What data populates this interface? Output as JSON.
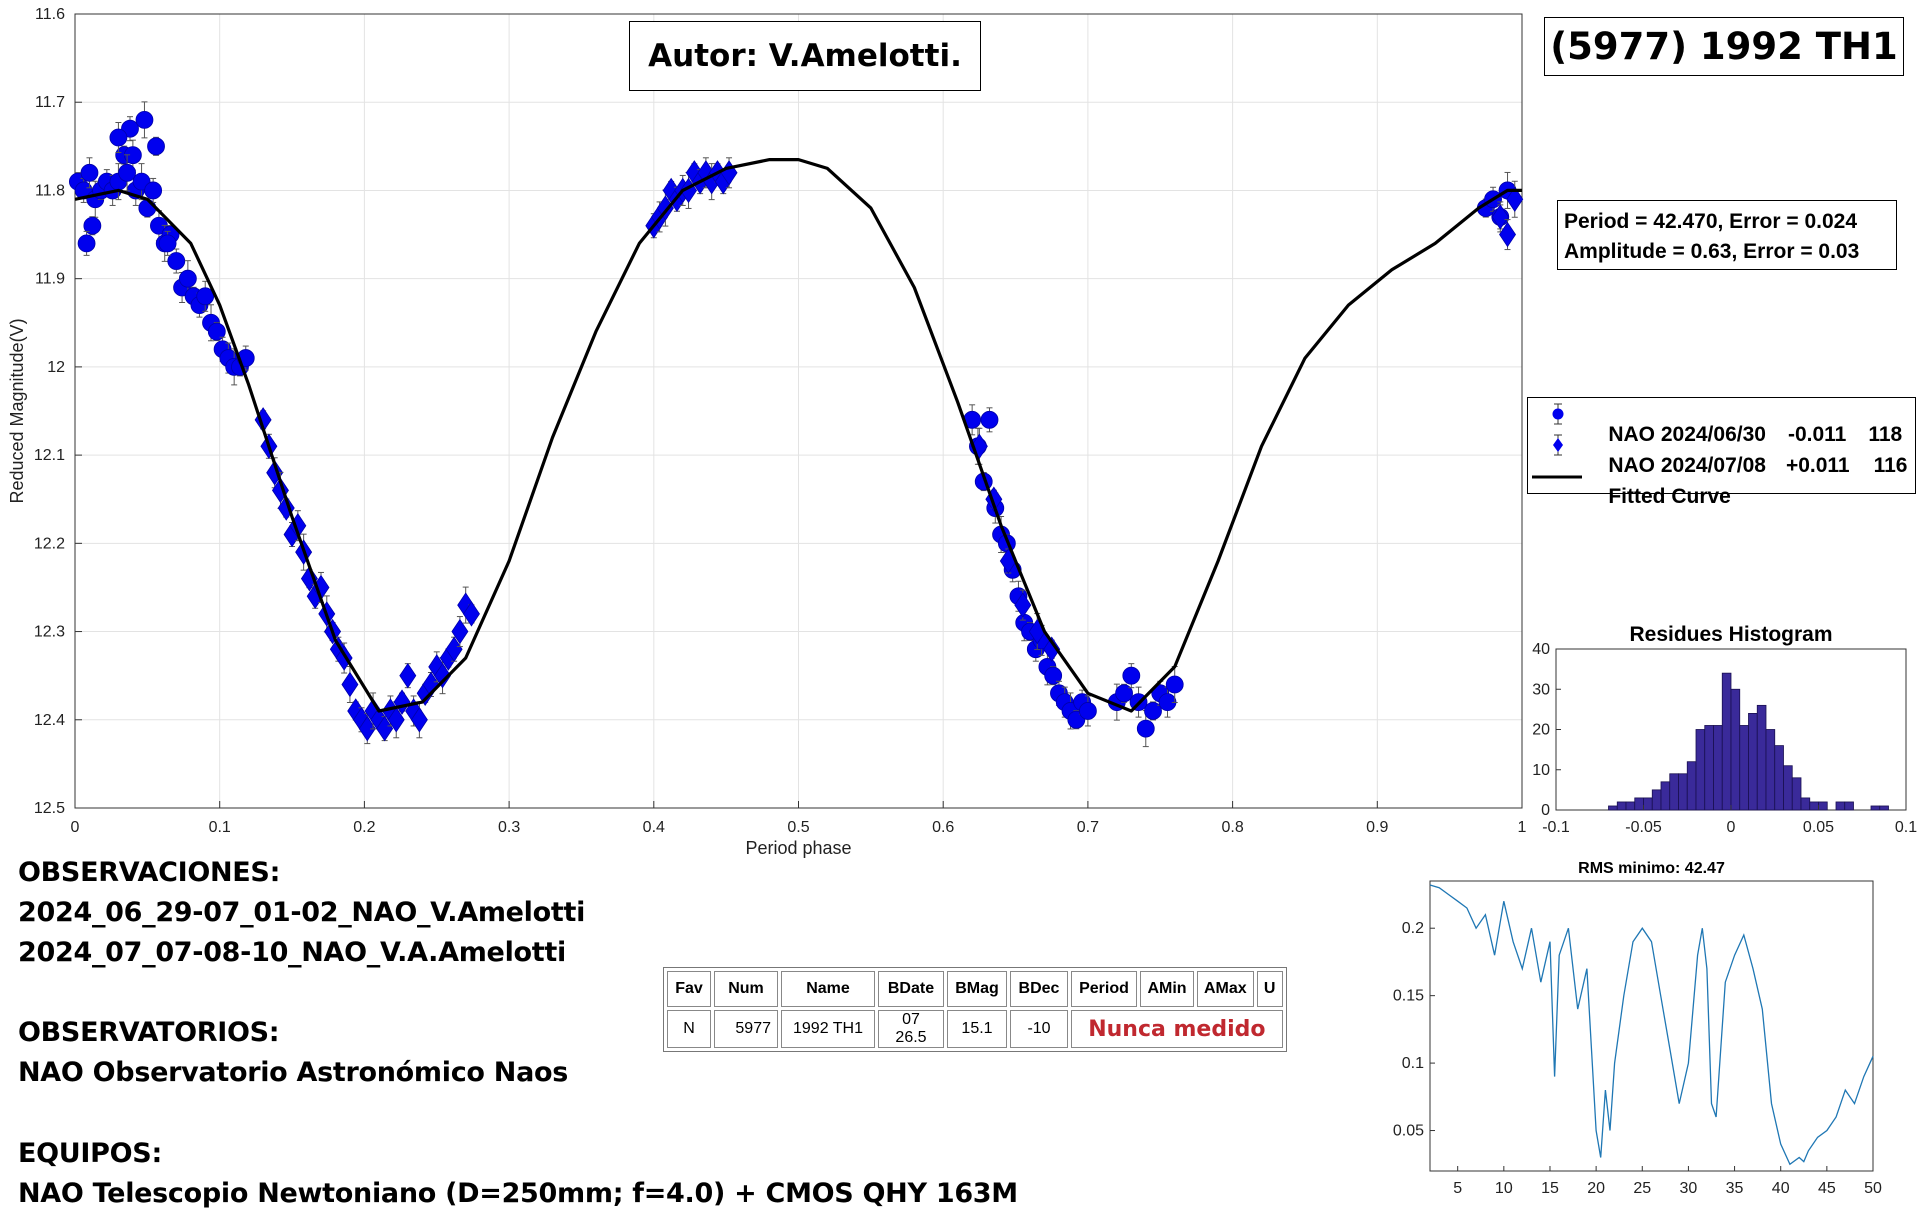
{
  "author_label": "Autor: V.Amelotti.",
  "object_label": "(5977) 1992 TH1",
  "fit_info": {
    "period_line": "Period =  42.470, Error = 0.024",
    "amplitude_line": "Amplitude = 0.63, Error = 0.03"
  },
  "notes": {
    "observations_title": "OBSERVACIONES:",
    "observation_1": "2024_06_29-07_01-02_NAO_V.Amelotti",
    "observation_2": "2024_07_07-08-10_NAO_V.A.Amelotti",
    "observatories_title": "OBSERVATORIOS:",
    "observatory_1": "NAO Observatorio Astronómico Naos",
    "equipment_title": "EQUIPOS:",
    "equipment_1": "NAO Telescopio Newtoniano (D=250mm; f=4.0) + CMOS QHY 163M"
  },
  "table": {
    "headers": [
      "Fav",
      "Num",
      "Name",
      "BDate",
      "BMag",
      "BDec",
      "Period",
      "AMin",
      "AMax",
      "U"
    ],
    "row": {
      "fav": "N",
      "num": "5977",
      "name": "1992 TH1",
      "bdate": "07 26.5",
      "bmag": "15.1",
      "bdec": "-10",
      "status": "Nunca medido"
    }
  },
  "chart_data": [
    {
      "type": "scatter",
      "xlabel": "Period phase",
      "ylabel": "Reduced Magnitude(V)",
      "xlim": [
        0,
        1
      ],
      "ylim": [
        11.6,
        12.5
      ],
      "y_reversed": true,
      "grid": true,
      "x_ticks": [
        0,
        0.1,
        0.2,
        0.3,
        0.4,
        0.5,
        0.6,
        0.7,
        0.8,
        0.9,
        1
      ],
      "y_ticks": [
        11.6,
        11.7,
        11.8,
        11.9,
        12,
        12.1,
        12.2,
        12.3,
        12.4,
        12.5
      ],
      "marker_color": "#0000ee",
      "legend_placement": "right",
      "legend": [
        {
          "name": "NAO 2024/06/30",
          "offset": "-0.011",
          "count": "118",
          "marker": "circle"
        },
        {
          "name": "NAO 2024/07/08",
          "offset": "+0.011",
          "count": "116",
          "marker": "diamond"
        },
        {
          "name": "Fitted Curve",
          "marker": "line"
        }
      ],
      "fitted_curve": {
        "x": [
          0,
          0.03,
          0.05,
          0.08,
          0.1,
          0.12,
          0.15,
          0.18,
          0.21,
          0.24,
          0.27,
          0.3,
          0.33,
          0.36,
          0.39,
          0.42,
          0.45,
          0.48,
          0.5,
          0.52,
          0.55,
          0.58,
          0.61,
          0.64,
          0.67,
          0.7,
          0.73,
          0.76,
          0.79,
          0.82,
          0.85,
          0.88,
          0.91,
          0.94,
          0.97,
          0.99,
          1
        ],
        "y": [
          11.81,
          11.8,
          11.81,
          11.86,
          11.93,
          12.02,
          12.17,
          12.31,
          12.39,
          12.38,
          12.33,
          12.22,
          12.08,
          11.96,
          11.86,
          11.8,
          11.775,
          11.765,
          11.765,
          11.775,
          11.82,
          11.91,
          12.04,
          12.18,
          12.3,
          12.37,
          12.39,
          12.34,
          12.22,
          12.09,
          11.99,
          11.93,
          11.89,
          11.86,
          11.82,
          11.8,
          11.8
        ]
      },
      "series": [
        {
          "name": "NAO 2024/06/30",
          "marker": "circle",
          "x": [
            0.002,
            0.006,
            0.01,
            0.014,
            0.018,
            0.022,
            0.026,
            0.03,
            0.034,
            0.038,
            0.042,
            0.046,
            0.05,
            0.054,
            0.058,
            0.062,
            0.066,
            0.07,
            0.074,
            0.078,
            0.082,
            0.086,
            0.09,
            0.094,
            0.098,
            0.102,
            0.106,
            0.11,
            0.114,
            0.118,
            0.04,
            0.048,
            0.056,
            0.064,
            0.03,
            0.036,
            0.012,
            0.008,
            0.62,
            0.624,
            0.628,
            0.632,
            0.636,
            0.64,
            0.644,
            0.648,
            0.652,
            0.656,
            0.66,
            0.664,
            0.668,
            0.672,
            0.676,
            0.68,
            0.684,
            0.688,
            0.692,
            0.696,
            0.7,
            0.72,
            0.725,
            0.73,
            0.735,
            0.74,
            0.745,
            0.75,
            0.755,
            0.76,
            0.975,
            0.98,
            0.985,
            0.99
          ],
          "y": [
            11.79,
            11.8,
            11.78,
            11.81,
            11.8,
            11.79,
            11.8,
            11.79,
            11.76,
            11.73,
            11.8,
            11.79,
            11.82,
            11.8,
            11.84,
            11.86,
            11.85,
            11.88,
            11.91,
            11.9,
            11.92,
            11.93,
            11.92,
            11.95,
            11.96,
            11.98,
            11.99,
            12.0,
            12.0,
            11.99,
            11.76,
            11.72,
            11.75,
            11.86,
            11.74,
            11.78,
            11.84,
            11.86,
            12.06,
            12.09,
            12.13,
            12.06,
            12.16,
            12.19,
            12.2,
            12.23,
            12.26,
            12.29,
            12.3,
            12.32,
            12.31,
            12.34,
            12.35,
            12.37,
            12.38,
            12.39,
            12.4,
            12.38,
            12.39,
            12.38,
            12.37,
            12.35,
            12.38,
            12.41,
            12.39,
            12.37,
            12.38,
            12.36,
            11.82,
            11.81,
            11.83,
            11.8
          ]
        },
        {
          "name": "NAO 2024/07/08",
          "marker": "diamond",
          "x": [
            0.13,
            0.134,
            0.138,
            0.142,
            0.146,
            0.15,
            0.154,
            0.158,
            0.162,
            0.166,
            0.17,
            0.174,
            0.178,
            0.182,
            0.186,
            0.19,
            0.194,
            0.198,
            0.202,
            0.206,
            0.21,
            0.214,
            0.218,
            0.222,
            0.226,
            0.23,
            0.234,
            0.238,
            0.242,
            0.246,
            0.25,
            0.254,
            0.258,
            0.262,
            0.266,
            0.27,
            0.274,
            0.4,
            0.404,
            0.408,
            0.412,
            0.416,
            0.42,
            0.424,
            0.428,
            0.432,
            0.436,
            0.44,
            0.444,
            0.448,
            0.452,
            0.625,
            0.635,
            0.645,
            0.655,
            0.665,
            0.675,
            0.985,
            0.99,
            0.995
          ],
          "y": [
            12.06,
            12.09,
            12.12,
            12.14,
            12.16,
            12.19,
            12.18,
            12.21,
            12.24,
            12.26,
            12.25,
            12.28,
            12.3,
            12.32,
            12.33,
            12.36,
            12.39,
            12.4,
            12.41,
            12.39,
            12.4,
            12.41,
            12.39,
            12.4,
            12.38,
            12.35,
            12.39,
            12.4,
            12.37,
            12.36,
            12.34,
            12.35,
            12.33,
            12.32,
            12.3,
            12.27,
            12.28,
            11.84,
            11.83,
            11.82,
            11.8,
            11.81,
            11.8,
            11.8,
            11.78,
            11.79,
            11.78,
            11.79,
            11.78,
            11.79,
            11.78,
            12.09,
            12.15,
            12.22,
            12.27,
            12.3,
            12.32,
            11.83,
            11.85,
            11.81
          ]
        }
      ]
    },
    {
      "type": "bar",
      "title": "Residues Histogram",
      "xlim": [
        -0.1,
        0.1
      ],
      "ylim": [
        0,
        40
      ],
      "x_ticks": [
        -0.1,
        -0.05,
        0,
        0.05,
        0.1
      ],
      "y_ticks": [
        0,
        10,
        20,
        30,
        40
      ],
      "bar_color": "#3a2a9a",
      "bin_width": 0.005,
      "bin_centers": [
        -0.0675,
        -0.0625,
        -0.0575,
        -0.0525,
        -0.0475,
        -0.0425,
        -0.0375,
        -0.0325,
        -0.0275,
        -0.0225,
        -0.0175,
        -0.0125,
        -0.0075,
        -0.0025,
        0.0025,
        0.0075,
        0.0125,
        0.0175,
        0.0225,
        0.0275,
        0.0325,
        0.0375,
        0.0425,
        0.0475,
        0.0525,
        0.0575,
        0.0625,
        0.0675,
        0.0725,
        0.0775,
        0.0825,
        0.0875
      ],
      "values": [
        1,
        2,
        2,
        3,
        3,
        5,
        7,
        9,
        9,
        12,
        20,
        21,
        21,
        34,
        30,
        21,
        24,
        26,
        20,
        16,
        11,
        8,
        3,
        2,
        2,
        0,
        2,
        2,
        0,
        0,
        1,
        1
      ]
    },
    {
      "type": "line",
      "title": "RMS minimo: 42.47",
      "xlim": [
        2,
        50
      ],
      "ylim": [
        0.02,
        0.235
      ],
      "x_ticks": [
        5,
        10,
        15,
        20,
        25,
        30,
        35,
        40,
        45,
        50
      ],
      "y_ticks": [
        0.05,
        0.1,
        0.15,
        0.2
      ],
      "line_color": "#1f77b4",
      "x": [
        2,
        3,
        4,
        5,
        6,
        7,
        8,
        9,
        10,
        11,
        12,
        13,
        14,
        15,
        15.5,
        16,
        17,
        18,
        19,
        19.5,
        20,
        20.5,
        21,
        21.5,
        22,
        23,
        24,
        25,
        26,
        27,
        28,
        29,
        30,
        31,
        31.5,
        32,
        32.5,
        33,
        34,
        35,
        36,
        37,
        38,
        39,
        40,
        41,
        42,
        42.5,
        43,
        44,
        45,
        46,
        47,
        48,
        49,
        50
      ],
      "y": [
        0.232,
        0.23,
        0.225,
        0.22,
        0.215,
        0.2,
        0.21,
        0.18,
        0.22,
        0.19,
        0.17,
        0.2,
        0.16,
        0.19,
        0.09,
        0.18,
        0.2,
        0.14,
        0.17,
        0.11,
        0.05,
        0.03,
        0.08,
        0.05,
        0.1,
        0.15,
        0.19,
        0.2,
        0.19,
        0.15,
        0.11,
        0.07,
        0.1,
        0.18,
        0.2,
        0.17,
        0.07,
        0.06,
        0.16,
        0.18,
        0.195,
        0.17,
        0.14,
        0.07,
        0.04,
        0.025,
        0.03,
        0.027,
        0.035,
        0.045,
        0.05,
        0.06,
        0.08,
        0.07,
        0.09,
        0.105
      ]
    }
  ]
}
